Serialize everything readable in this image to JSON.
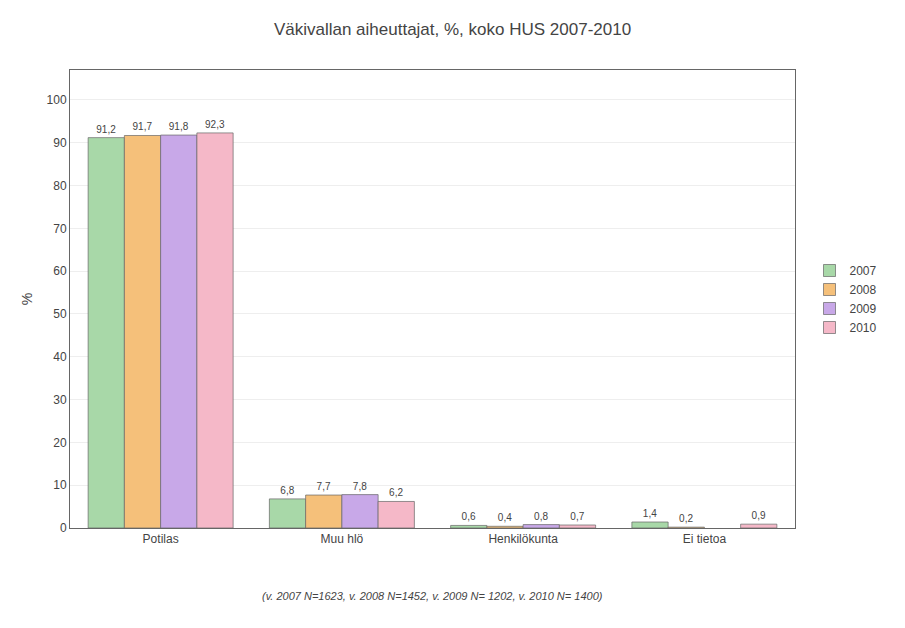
{
  "chart_data": {
    "type": "bar",
    "title": "Väkivallan aiheuttajat, %, koko HUS 2007-2010",
    "categories": [
      "Potilas",
      "Muu hlö",
      "Henkilökunta",
      "Ei tietoa"
    ],
    "series": [
      {
        "name": "2007",
        "color": "#A8D8A8",
        "values": [
          91.2,
          6.8,
          0.6,
          1.4
        ],
        "value_labels": [
          "91,2",
          "6,8",
          "0,6",
          "1,4"
        ]
      },
      {
        "name": "2008",
        "color": "#F5C07A",
        "values": [
          91.7,
          7.7,
          0.4,
          0.2
        ],
        "value_labels": [
          "91,7",
          "7,7",
          "0,4",
          "0,2"
        ]
      },
      {
        "name": "2009",
        "color": "#C8A8E8",
        "values": [
          91.8,
          7.8,
          0.8,
          null
        ],
        "value_labels": [
          "91,8",
          "7,8",
          "0,8",
          null
        ]
      },
      {
        "name": "2010",
        "color": "#F5B8C8",
        "values": [
          92.3,
          6.2,
          0.7,
          0.9
        ],
        "value_labels": [
          "92,3",
          "6,2",
          "0,7",
          "0,9"
        ]
      }
    ],
    "ylabel": "%",
    "ylim": [
      0,
      107
    ],
    "yticks": [
      0,
      10,
      20,
      30,
      40,
      50,
      60,
      70,
      80,
      90,
      100
    ],
    "grid": true,
    "legend": "right",
    "data_labels": true,
    "annotations": [
      "(v. 2007 N=1623, v. 2008 N=1452, v. 2009 N= 1202, v. 2010 N= 1400)"
    ]
  }
}
